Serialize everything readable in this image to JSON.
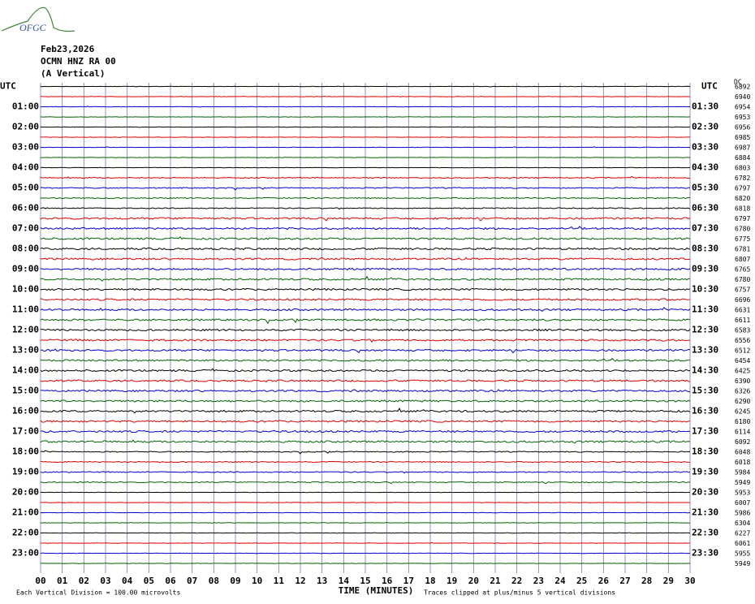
{
  "header": {
    "logo": "OFGC",
    "date": "Feb23,2026",
    "station": "OCMN HNZ RA 00",
    "component": "(A Vertical)"
  },
  "left_labels": [
    "UTC",
    "01:00",
    "02:00",
    "03:00",
    "04:00",
    "05:00",
    "06:00",
    "07:00",
    "08:00",
    "09:00",
    "10:00",
    "11:00",
    "12:00",
    "13:00",
    "14:00",
    "15:00",
    "16:00",
    "17:00",
    "18:00",
    "19:00",
    "20:00",
    "21:00",
    "22:00",
    "23:00"
  ],
  "right_labels": [
    "UTC",
    "01:30",
    "02:30",
    "03:30",
    "04:30",
    "05:30",
    "06:30",
    "07:30",
    "08:30",
    "09:30",
    "10:30",
    "11:30",
    "12:30",
    "13:30",
    "14:30",
    "15:30",
    "16:30",
    "17:30",
    "18:30",
    "19:30",
    "20:30",
    "21:30",
    "22:30",
    "23:30"
  ],
  "dc_label": "DC",
  "dc_values": [
    "6892",
    "6940",
    "6954",
    "6953",
    "6956",
    "6985",
    "6987",
    "6884",
    "6803",
    "6782",
    "6797",
    "6820",
    "6818",
    "6797",
    "6780",
    "6775",
    "6781",
    "6807",
    "6765",
    "6780",
    "6757",
    "6696",
    "6631",
    "6611",
    "6583",
    "6556",
    "6512",
    "6454",
    "6425",
    "6390",
    "6326",
    "6290",
    "6245",
    "6180",
    "6114",
    "6092",
    "6048",
    "6018",
    "5984",
    "5949",
    "5953",
    "6007",
    "5986",
    "6304",
    "6227",
    "6061",
    "5955",
    "5949"
  ],
  "x_ticks": [
    "00",
    "01",
    "02",
    "03",
    "04",
    "05",
    "06",
    "07",
    "08",
    "09",
    "10",
    "11",
    "12",
    "13",
    "14",
    "15",
    "16",
    "17",
    "18",
    "19",
    "20",
    "21",
    "22",
    "23",
    "24",
    "25",
    "26",
    "27",
    "28",
    "29",
    "30"
  ],
  "x_label": "TIME (MINUTES)",
  "footnote_left": "Each Vertical Division =  100.00 microvolts",
  "footnote_right": "Traces clipped at plus/minus 5 vertical divisions"
}
